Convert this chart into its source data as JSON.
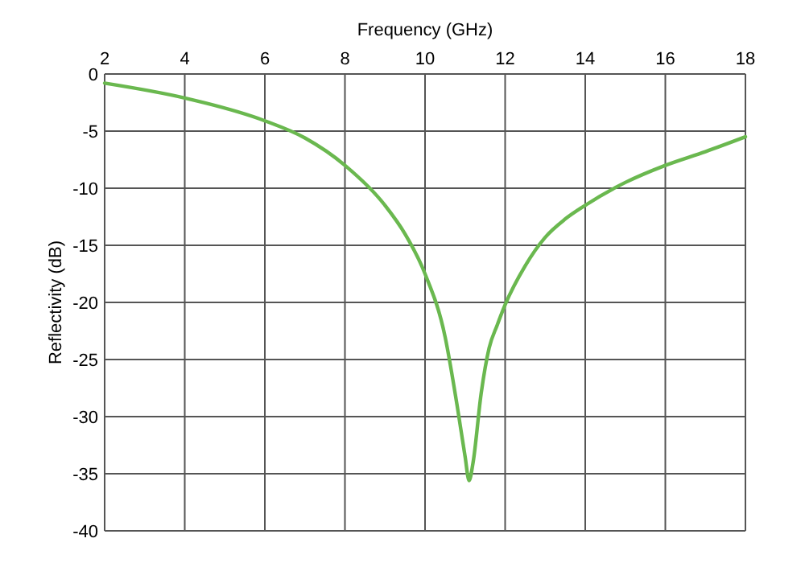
{
  "chart_data": {
    "type": "line",
    "xlabel": "Frequency (GHz)",
    "ylabel": "Reflectivity (dB)",
    "x": [
      2,
      4,
      6,
      7,
      8,
      9,
      9.5,
      10,
      10.5,
      10.8,
      11,
      11.1,
      11.2,
      11.4,
      11.6,
      11.8,
      12,
      12.5,
      13,
      13.5,
      14,
      15,
      16,
      17,
      18
    ],
    "series": [
      {
        "color": "#6ab84f",
        "values": [
          -0.8,
          -2.1,
          -4.1,
          -5.6,
          -8,
          -11.5,
          -14,
          -17.5,
          -23,
          -29,
          -33.5,
          -35.6,
          -34,
          -28,
          -24,
          -22,
          -20.2,
          -16.8,
          -14.3,
          -12.7,
          -11.5,
          -9.5,
          -8,
          -6.8,
          -5.5
        ]
      }
    ],
    "xlim": [
      2,
      18
    ],
    "xticks": [
      2,
      4,
      6,
      8,
      10,
      12,
      14,
      16,
      18
    ],
    "ylim": [
      -40,
      0
    ],
    "yticks": [
      0,
      -5,
      -10,
      -15,
      -20,
      -25,
      -30,
      -35,
      -40
    ],
    "grid": true,
    "marker": "none",
    "line_style": "solid"
  }
}
